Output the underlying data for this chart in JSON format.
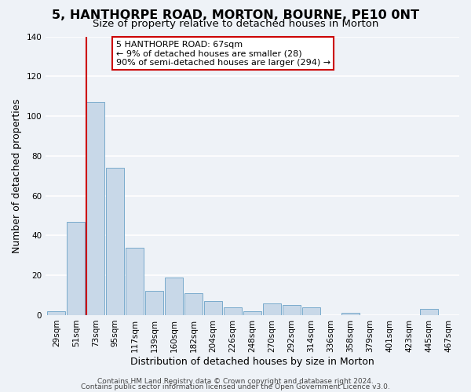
{
  "title": "5, HANTHORPE ROAD, MORTON, BOURNE, PE10 0NT",
  "subtitle": "Size of property relative to detached houses in Morton",
  "xlabel": "Distribution of detached houses by size in Morton",
  "ylabel": "Number of detached properties",
  "bar_labels": [
    "29sqm",
    "51sqm",
    "73sqm",
    "95sqm",
    "117sqm",
    "139sqm",
    "160sqm",
    "182sqm",
    "204sqm",
    "226sqm",
    "248sqm",
    "270sqm",
    "292sqm",
    "314sqm",
    "336sqm",
    "358sqm",
    "379sqm",
    "401sqm",
    "423sqm",
    "445sqm",
    "467sqm"
  ],
  "bar_values": [
    2,
    47,
    107,
    74,
    34,
    12,
    19,
    11,
    7,
    4,
    2,
    6,
    5,
    4,
    0,
    1,
    0,
    0,
    0,
    3,
    0
  ],
  "bar_color": "#c8d8e8",
  "bar_edge_color": "#7aabcc",
  "ylim": [
    0,
    140
  ],
  "yticks": [
    0,
    20,
    40,
    60,
    80,
    100,
    120,
    140
  ],
  "red_line_bar_index": 2,
  "annotation_title": "5 HANTHORPE ROAD: 67sqm",
  "annotation_line1": "← 9% of detached houses are smaller (28)",
  "annotation_line2": "90% of semi-detached houses are larger (294) →",
  "annotation_box_facecolor": "#ffffff",
  "annotation_box_edgecolor": "#cc0000",
  "footer_line1": "Contains HM Land Registry data © Crown copyright and database right 2024.",
  "footer_line2": "Contains public sector information licensed under the Open Government Licence v3.0.",
  "bg_color": "#eef2f7",
  "grid_color": "#ffffff",
  "title_fontsize": 11.5,
  "subtitle_fontsize": 9.5,
  "axis_label_fontsize": 9,
  "tick_fontsize": 7.5,
  "annotation_fontsize": 8,
  "footer_fontsize": 6.5
}
